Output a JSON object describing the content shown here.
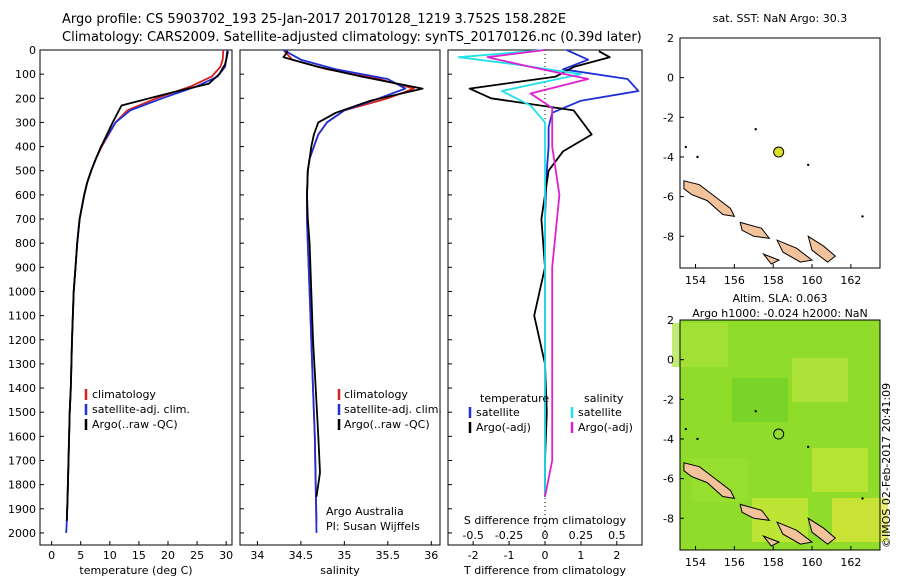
{
  "header": {
    "line1": "Argo profile: CS 5903702_193 25-Jan-2017 20170128_1219 3.752S 158.282E",
    "line2": "Climatology: CARS2009. Satellite-adjusted climatology: synTS_20170126.nc (0.39d later)"
  },
  "colors": {
    "climatology": "#d62020",
    "satellite": "#1f2fd6",
    "argo": "#000000",
    "satellite_S": "#22e0e8",
    "argo_S": "#e020d0",
    "land": "#f2c29a",
    "float_marker": "#d8e020",
    "sla_field": "#8fdc2a"
  },
  "signature": "©IMOS 02-Feb-2017 20:41:09",
  "chart_data": [
    {
      "type": "line",
      "name": "temperature",
      "xlabel": "temperature (deg C)",
      "ylabel": "",
      "xlim": [
        -2,
        31
      ],
      "ylim": [
        2050,
        0
      ],
      "x_ticks": [
        0,
        5,
        10,
        15,
        20,
        25,
        30
      ],
      "x_tick_labels": [
        "0",
        "5",
        "10",
        "15",
        "20",
        "25",
        "30"
      ],
      "y_ticks": [
        0,
        100,
        200,
        300,
        400,
        500,
        600,
        700,
        800,
        900,
        1000,
        1100,
        1200,
        1300,
        1400,
        1500,
        1600,
        1700,
        1800,
        1900,
        2000
      ],
      "y_tick_labels": [
        "0",
        "100",
        "200",
        "300",
        "400",
        "500",
        "600",
        "700",
        "800",
        "900",
        "1000",
        "1100",
        "1200",
        "1300",
        "1400",
        "1500",
        "1600",
        "1700",
        "1800",
        "1900",
        "2000"
      ],
      "legend": [
        "climatology",
        "satellite-adj. clim.",
        "Argo(..raw -QC)"
      ],
      "series": [
        {
          "name": "climatology",
          "color": "#d62020",
          "x": [
            29.5,
            29.4,
            29.0,
            27.5,
            24.0,
            18.0,
            13.0,
            11.0,
            9.8,
            8.6,
            7.6,
            6.8,
            6.1,
            5.6,
            5.2,
            4.8,
            4.4,
            4.1,
            3.8,
            3.5,
            3.3,
            3.1,
            2.9,
            2.75,
            2.6
          ],
          "y": [
            0,
            40,
            70,
            110,
            150,
            200,
            250,
            300,
            350,
            400,
            450,
            500,
            550,
            600,
            650,
            700,
            800,
            900,
            1000,
            1200,
            1400,
            1500,
            1700,
            1850,
            1950
          ]
        },
        {
          "name": "satellite-adj. clim.",
          "color": "#1f2fd6",
          "x": [
            30.2,
            30.0,
            29.8,
            28.5,
            25.0,
            19.0,
            13.5,
            11.0,
            9.7,
            8.5,
            7.6,
            6.8,
            6.1,
            5.6,
            5.2,
            4.8,
            4.4,
            4.1,
            3.8,
            3.5,
            3.3,
            3.1,
            2.9,
            2.75,
            2.6,
            2.5
          ],
          "y": [
            0,
            40,
            70,
            110,
            150,
            200,
            250,
            300,
            350,
            400,
            450,
            500,
            550,
            600,
            650,
            700,
            800,
            900,
            1000,
            1200,
            1400,
            1500,
            1700,
            1850,
            1950,
            2000
          ]
        },
        {
          "name": "Argo(..raw -QC)",
          "color": "#000000",
          "x": [
            30.3,
            30.1,
            29.8,
            28.8,
            27.0,
            20.0,
            12.0,
            10.5,
            9.5,
            8.5,
            7.6,
            6.8,
            6.1,
            5.6,
            5.2,
            4.8,
            4.4,
            4.1,
            3.8,
            3.5,
            3.3,
            3.1,
            2.9,
            2.75,
            2.6
          ],
          "y": [
            5,
            30,
            60,
            100,
            140,
            180,
            230,
            300,
            350,
            400,
            450,
            500,
            550,
            600,
            650,
            700,
            800,
            900,
            1000,
            1200,
            1400,
            1500,
            1700,
            1850,
            1950
          ]
        }
      ]
    },
    {
      "type": "line",
      "name": "salinity",
      "xlabel": "salinity",
      "ylabel": "",
      "xlim": [
        33.8,
        36.1
      ],
      "ylim": [
        2050,
        0
      ],
      "x_ticks": [
        34,
        34.5,
        35,
        35.5,
        36
      ],
      "x_tick_labels": [
        "34",
        "34.5",
        "35",
        "35.5",
        "36"
      ],
      "legend": [
        "climatology",
        "satellite-adj. clim.",
        "Argo(..raw -QC)"
      ],
      "annotation_lines": [
        "Argo Australia",
        "PI: Susan Wijffels"
      ],
      "series": [
        {
          "name": "climatology",
          "color": "#d62020",
          "x": [
            34.3,
            34.4,
            34.8,
            35.4,
            35.8,
            35.5,
            35.0,
            34.8,
            34.7,
            34.65,
            34.6,
            34.58,
            34.57,
            34.57,
            34.58,
            34.6,
            34.62,
            34.64,
            34.66,
            34.67,
            34.68
          ],
          "y": [
            0,
            40,
            80,
            120,
            160,
            200,
            250,
            300,
            350,
            400,
            450,
            500,
            600,
            700,
            800,
            1000,
            1200,
            1400,
            1600,
            1800,
            1950
          ]
        },
        {
          "name": "satellite-adj. clim.",
          "color": "#1f2fd6",
          "x": [
            34.3,
            34.5,
            34.9,
            35.5,
            35.7,
            35.4,
            35.0,
            34.8,
            34.7,
            34.65,
            34.6,
            34.58,
            34.57,
            34.57,
            34.58,
            34.6,
            34.62,
            34.64,
            34.66,
            34.67,
            34.68
          ],
          "y": [
            0,
            40,
            80,
            120,
            160,
            200,
            250,
            300,
            350,
            400,
            450,
            500,
            600,
            700,
            800,
            1000,
            1200,
            1400,
            1600,
            1800,
            2000
          ]
        },
        {
          "name": "Argo(..raw -QC)",
          "color": "#000000",
          "x": [
            34.35,
            34.3,
            34.7,
            35.2,
            35.9,
            35.3,
            34.9,
            34.7,
            34.65,
            34.62,
            34.6,
            34.58,
            34.57,
            34.58,
            34.6,
            34.62,
            34.64,
            34.67,
            34.7,
            34.72,
            34.68
          ],
          "y": [
            5,
            30,
            70,
            110,
            160,
            210,
            260,
            300,
            350,
            400,
            450,
            500,
            600,
            700,
            800,
            1000,
            1200,
            1400,
            1600,
            1750,
            1850
          ]
        }
      ]
    },
    {
      "type": "line",
      "name": "difference from climatology",
      "xlabel": "T difference from climatology",
      "x2label": "S difference from climatology",
      "xlim": [
        -2.7,
        2.7
      ],
      "x2lim": [
        -0.675,
        0.675
      ],
      "ylim": [
        2050,
        0
      ],
      "x_ticks": [
        -2,
        -1,
        0,
        1,
        2
      ],
      "x_tick_labels": [
        "-2",
        "-1",
        "0",
        "1",
        "2"
      ],
      "x2_ticks": [
        -0.5,
        -0.25,
        0,
        0.25,
        0.5
      ],
      "x2_tick_labels": [
        "-0.5",
        "-0.25",
        "0",
        "0.25",
        "0.5"
      ],
      "legend_groups": [
        {
          "heading": "temperature",
          "items": [
            "satellite",
            "Argo(-adj)"
          ]
        },
        {
          "heading": "salinity",
          "items": [
            "satellite",
            "Argo(-adj)"
          ]
        }
      ],
      "series": [
        {
          "name": "temperature satellite",
          "color": "#1f2fd6",
          "axis": "T",
          "x": [
            0.6,
            1.2,
            0.5,
            2.3,
            2.6,
            1.0,
            0.2,
            0.1,
            0.1,
            0.05,
            0.0,
            0.0,
            0.0,
            0.0,
            0.0
          ],
          "y": [
            0,
            40,
            80,
            120,
            170,
            210,
            260,
            320,
            400,
            500,
            700,
            1000,
            1400,
            1800,
            1850
          ]
        },
        {
          "name": "temperature Argo(-adj)",
          "color": "#000000",
          "axis": "T",
          "x": [
            1.5,
            1.8,
            0.8,
            0.3,
            -2.1,
            -1.5,
            0.8,
            1.3,
            0.5,
            0.1,
            -0.1,
            0.0,
            -0.3,
            0.0,
            0.05,
            0.0,
            0.0
          ],
          "y": [
            5,
            30,
            70,
            110,
            160,
            200,
            250,
            350,
            420,
            500,
            700,
            900,
            1100,
            1300,
            1500,
            1700,
            1850
          ]
        },
        {
          "name": "salinity satellite",
          "color": "#22e0e8",
          "axis": "S",
          "x": [
            0.0,
            -0.6,
            -0.2,
            0.25,
            -0.3,
            -0.1,
            0.0,
            0.0,
            0.0,
            0.0,
            0.0,
            0.0,
            0.0
          ],
          "y": [
            0,
            30,
            60,
            100,
            170,
            230,
            300,
            400,
            600,
            900,
            1300,
            1700,
            1850
          ]
        },
        {
          "name": "salinity Argo(-adj)",
          "color": "#e020d0",
          "axis": "S",
          "x": [
            0.0,
            -0.4,
            -0.1,
            0.3,
            -0.1,
            0.05,
            0.05,
            0.05,
            0.1,
            0.05,
            0.05,
            0.05,
            0.0
          ],
          "y": [
            0,
            30,
            70,
            120,
            180,
            240,
            300,
            400,
            600,
            900,
            1300,
            1700,
            1850
          ]
        }
      ]
    },
    {
      "type": "scatter",
      "name": "float location map",
      "title": "sat. SST: NaN Argo: 30.3",
      "xlim": [
        153.2,
        163.5
      ],
      "ylim": [
        -9.6,
        2.0
      ],
      "x_ticks": [
        154,
        156,
        158,
        160,
        162
      ],
      "x_tick_labels": [
        "154",
        "156",
        "158",
        "160",
        "162"
      ],
      "y_ticks": [
        -8,
        -6,
        -4,
        -2,
        0,
        2
      ],
      "y_tick_labels": [
        "-8",
        "-6",
        "-4",
        "-2",
        "0",
        "2"
      ],
      "points": [
        {
          "x": 158.282,
          "y": -3.752
        }
      ]
    },
    {
      "type": "heatmap",
      "name": "altimetry map",
      "title_lines": [
        "Altim. SLA: 0.063",
        "Argo h1000: -0.024 h2000: NaN"
      ],
      "xlim": [
        153.2,
        163.5
      ],
      "ylim": [
        -9.6,
        2.0
      ],
      "x_ticks": [
        154,
        156,
        158,
        160,
        162
      ],
      "x_tick_labels": [
        "154",
        "156",
        "158",
        "160",
        "162"
      ],
      "y_ticks": [
        -8,
        -6,
        -4,
        -2,
        0,
        2
      ],
      "y_tick_labels": [
        "-8",
        "-6",
        "-4",
        "-2",
        "0",
        "2"
      ],
      "points": [
        {
          "x": 158.282,
          "y": -3.752
        }
      ]
    }
  ]
}
